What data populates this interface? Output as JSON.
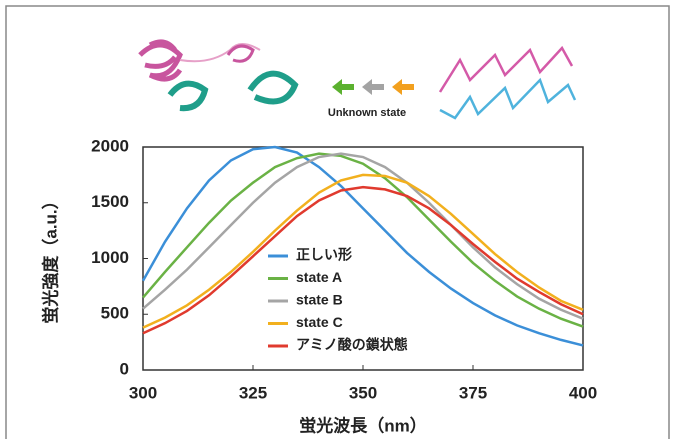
{
  "illustration": {
    "label": "Unknown state"
  },
  "chart_data": {
    "type": "line",
    "y_label": "蛍光強度（a.u.）",
    "x_label": "蛍光波長（nm）",
    "x": [
      300,
      305,
      310,
      315,
      320,
      325,
      330,
      335,
      340,
      345,
      350,
      355,
      360,
      365,
      370,
      375,
      380,
      385,
      390,
      395,
      400
    ],
    "xlim": [
      300,
      400
    ],
    "xticks": [
      300,
      325,
      350,
      375,
      400
    ],
    "ylim": [
      0,
      2000
    ],
    "yticks": [
      0,
      500,
      1000,
      1500,
      2000
    ],
    "series": [
      {
        "name": "正しい形",
        "color": "#3b8fd8",
        "values": [
          800,
          1150,
          1450,
          1700,
          1880,
          1980,
          2000,
          1950,
          1820,
          1650,
          1450,
          1250,
          1050,
          880,
          730,
          600,
          490,
          400,
          330,
          270,
          220
        ]
      },
      {
        "name": "state A",
        "color": "#6ab245",
        "values": [
          650,
          880,
          1100,
          1320,
          1520,
          1680,
          1820,
          1900,
          1940,
          1920,
          1850,
          1720,
          1550,
          1350,
          1150,
          960,
          800,
          660,
          550,
          460,
          390
        ]
      },
      {
        "name": "state B",
        "color": "#a5a5a5",
        "values": [
          550,
          720,
          900,
          1100,
          1300,
          1500,
          1680,
          1820,
          1910,
          1940,
          1910,
          1820,
          1680,
          1500,
          1300,
          1100,
          920,
          770,
          640,
          540,
          460
        ]
      },
      {
        "name": "state C",
        "color": "#f2b01e",
        "values": [
          380,
          470,
          580,
          720,
          880,
          1060,
          1250,
          1430,
          1590,
          1700,
          1750,
          1740,
          1680,
          1560,
          1400,
          1220,
          1040,
          880,
          740,
          620,
          540
        ]
      },
      {
        "name": "アミノ酸の鎖状態",
        "color": "#e03a2e",
        "values": [
          330,
          420,
          530,
          670,
          840,
          1020,
          1200,
          1380,
          1520,
          1610,
          1640,
          1620,
          1560,
          1450,
          1300,
          1130,
          970,
          820,
          700,
          590,
          500
        ]
      }
    ]
  }
}
